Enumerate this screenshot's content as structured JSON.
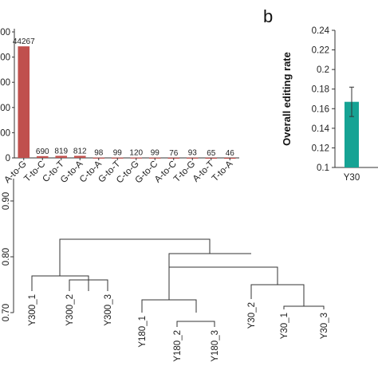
{
  "panels": {
    "b": "b"
  },
  "colors": {
    "bar_a": "#c0504d",
    "bar_b": "#16a394",
    "axis": "#333333",
    "tree": "#333333"
  },
  "chart_data": [
    {
      "type": "bar",
      "categories": [
        "A-to-G",
        "T-to-C",
        "C-to-T",
        "G-to-A",
        "C-to-A",
        "G-to-T",
        "C-to-G",
        "G-to-C",
        "A-to-C",
        "T-to-G",
        "A-to-T",
        "T-to-A"
      ],
      "values": [
        44267,
        690,
        819,
        812,
        98,
        99,
        120,
        99,
        76,
        93,
        65,
        46
      ],
      "y_tick_labels": [
        "0",
        "00",
        "00",
        "00",
        "00",
        "00"
      ],
      "ylim": [
        0,
        50000
      ]
    },
    {
      "type": "bar",
      "panel": "b",
      "ylabel": "Overall editing rate",
      "categories": [
        "Y30"
      ],
      "values": [
        0.167
      ],
      "error": [
        0.015
      ],
      "ylim": [
        0.1,
        0.24
      ],
      "yticks": [
        0.1,
        0.12,
        0.14,
        0.16,
        0.18,
        0.2,
        0.22,
        0.24
      ],
      "ytick_labels": [
        "0.1",
        "0.12",
        "0.14",
        "0.16",
        "0.18",
        "0.2",
        "0.22",
        "0.24"
      ]
    },
    {
      "type": "dendrogram",
      "leaves": [
        "Y300_1",
        "Y300_2",
        "Y300_3",
        "Y180_1",
        "Y180_2",
        "Y180_3",
        "Y30_2",
        "Y30_1",
        "Y30_3"
      ],
      "yticks": [
        0.7,
        0.8,
        0.9
      ],
      "ytick_labels": [
        "0.70",
        "0.80",
        "0.90"
      ],
      "ylim": [
        0.7,
        1.0
      ]
    }
  ]
}
